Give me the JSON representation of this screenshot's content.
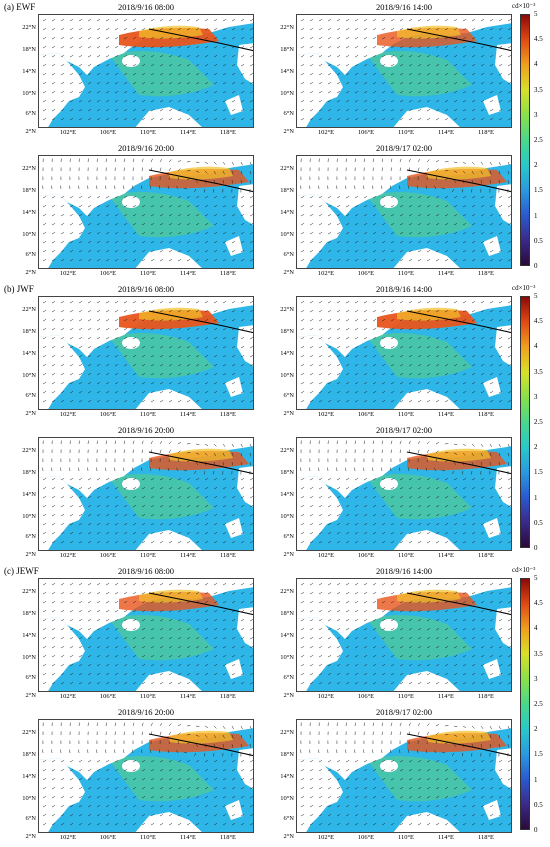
{
  "sections": [
    {
      "label": "(a) EWF",
      "top": 0
    },
    {
      "label": "(b) JWF",
      "top": 282
    },
    {
      "label": "(c) JEWF",
      "top": 564
    }
  ],
  "panel_titles": [
    "2018/9/16 08:00",
    "2018/9/16 14:00",
    "2018/9/16 20:00",
    "2018/9/17 02:00"
  ],
  "y_ticks": [
    "22°N",
    "18°N",
    "14°N",
    "10°N",
    "6°N",
    "2°N"
  ],
  "x_ticks": [
    "102°E",
    "106°E",
    "110°E",
    "114°E",
    "118°E"
  ],
  "colorbar": {
    "unit": "cd×10⁻³",
    "ticks": [
      "5",
      "4.5",
      "4",
      "3.5",
      "3",
      "2.5",
      "2",
      "1.5",
      "1",
      "0.5",
      "0"
    ]
  },
  "colors": {
    "sea_base": "#2fb6e8",
    "high": "#e8551c",
    "mid": "#f2c02a",
    "green": "#5ad07a",
    "land": "#ffffff"
  }
}
